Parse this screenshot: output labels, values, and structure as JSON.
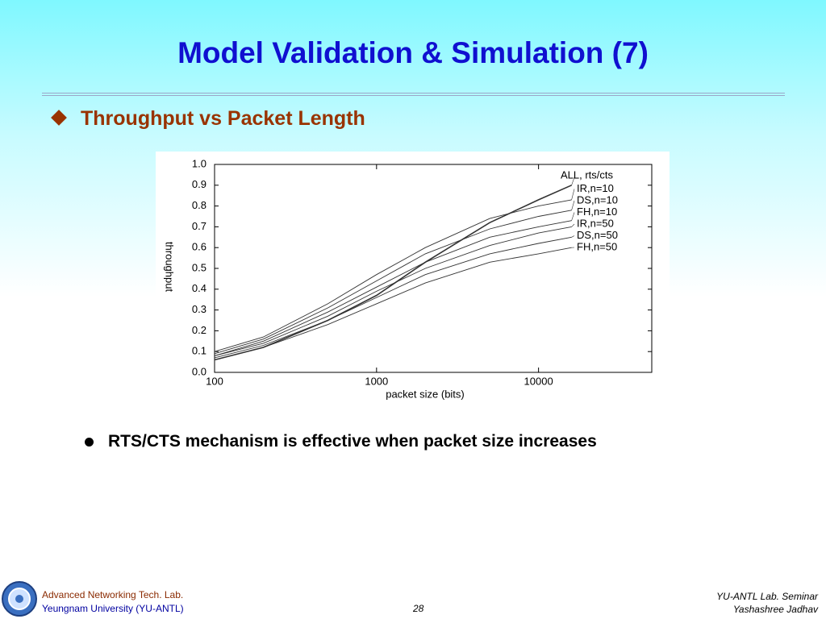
{
  "slide": {
    "title": "Model Validation & Simulation (7)",
    "subtitle": "Throughput vs Packet Length",
    "bullet": "RTS/CTS mechanism is effective when packet size increases",
    "footer_left": [
      "Advanced Networking Tech. Lab.",
      "Yeungnam University (YU-ANTL)"
    ],
    "page": "28",
    "footer_right": [
      "YU-ANTL Lab. Seminar",
      "Yashashree Jadhav"
    ]
  },
  "chart_data": {
    "type": "line",
    "x_label": "packet size (bits)",
    "y_label": "throughput",
    "xscale": "log",
    "color": "#333333",
    "x": [
      100,
      200,
      500,
      1000,
      2000,
      5000,
      10000,
      16000
    ],
    "xlim": [
      100,
      50000
    ],
    "xticks": [
      100,
      1000,
      10000
    ],
    "ylim": [
      0,
      1
    ],
    "yticks": [
      {
        "value": 0,
        "label": "0.0"
      },
      0.1,
      0.2,
      0.3,
      0.4,
      0.5,
      0.6,
      0.7,
      0.8,
      0.9,
      {
        "value": 1,
        "label": "1.0"
      }
    ],
    "series": [
      {
        "name": "ALL, rts/cts",
        "values": [
          0.06,
          0.12,
          0.25,
          0.37,
          0.53,
          0.72,
          0.83,
          0.9
        ]
      },
      {
        "name": "IR,n=10",
        "values": [
          0.1,
          0.17,
          0.33,
          0.47,
          0.6,
          0.74,
          0.8,
          0.83
        ]
      },
      {
        "name": "DS,n=10",
        "values": [
          0.09,
          0.16,
          0.31,
          0.44,
          0.57,
          0.69,
          0.75,
          0.78
        ]
      },
      {
        "name": "FH,n=10",
        "values": [
          0.08,
          0.15,
          0.29,
          0.41,
          0.53,
          0.65,
          0.7,
          0.73
        ]
      },
      {
        "name": "IR,n=50",
        "values": [
          0.08,
          0.14,
          0.27,
          0.39,
          0.5,
          0.61,
          0.67,
          0.7
        ]
      },
      {
        "name": "DS,n=50",
        "values": [
          0.07,
          0.13,
          0.25,
          0.36,
          0.47,
          0.57,
          0.62,
          0.65
        ]
      },
      {
        "name": "FH,n=50",
        "values": [
          0.06,
          0.12,
          0.23,
          0.33,
          0.43,
          0.53,
          0.57,
          0.6
        ]
      }
    ]
  }
}
